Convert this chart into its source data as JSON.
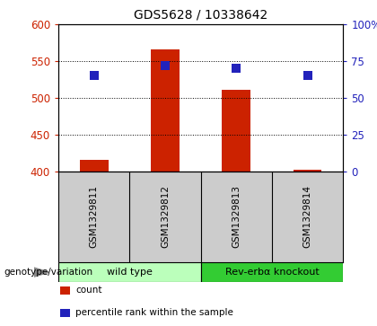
{
  "title": "GDS5628 / 10338642",
  "samples": [
    "GSM1329811",
    "GSM1329812",
    "GSM1329813",
    "GSM1329814"
  ],
  "counts": [
    416,
    566,
    511,
    402
  ],
  "percentile_ranks": [
    65,
    72,
    70,
    65
  ],
  "count_baseline": 400,
  "ylim_left": [
    400,
    600
  ],
  "ylim_right": [
    0,
    100
  ],
  "yticks_left": [
    400,
    450,
    500,
    550,
    600
  ],
  "yticks_right": [
    0,
    25,
    50,
    75,
    100
  ],
  "bar_color": "#cc2200",
  "dot_color": "#2222bb",
  "groups": [
    {
      "label": "wild type",
      "samples": [
        0,
        1
      ],
      "color": "#bbffbb"
    },
    {
      "label": "Rev-erbα knockout",
      "samples": [
        2,
        3
      ],
      "color": "#33cc33"
    }
  ],
  "xlabel_genotype": "genotype/variation",
  "legend_count_label": "count",
  "legend_pct_label": "percentile rank within the sample",
  "background_color": "#ffffff",
  "plot_bg": "#ffffff",
  "tick_label_color_left": "#cc2200",
  "tick_label_color_right": "#2222bb",
  "bar_width": 0.4,
  "dot_size": 50,
  "sample_area_color": "#cccccc"
}
